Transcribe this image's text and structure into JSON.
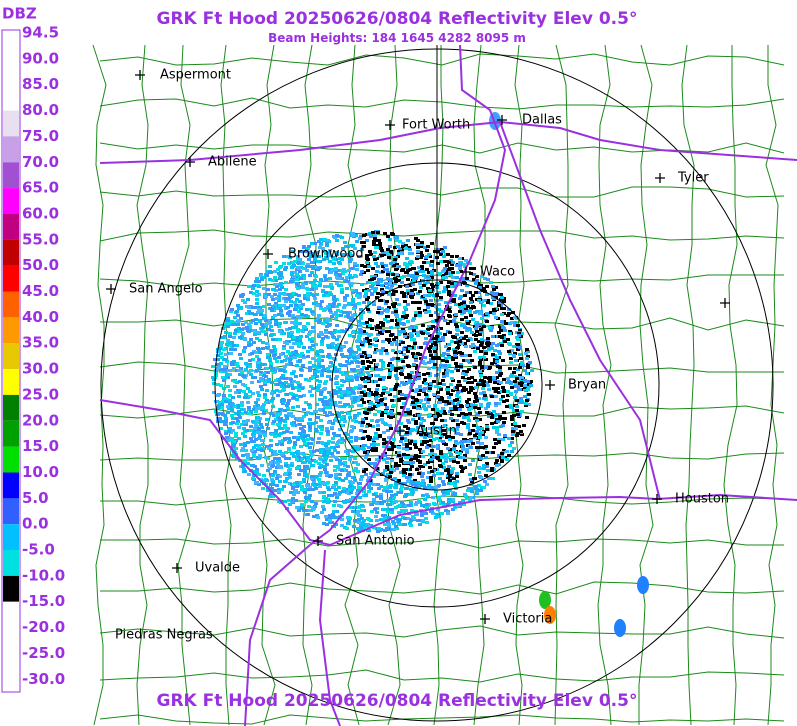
{
  "header": {
    "title": "GRK Ft Hood 20250626/0804 Reflectivity Elev 0.5°",
    "subtitle": "Beam Heights: 184 1645 4282 8095 m"
  },
  "legend": {
    "unit": "DBZ",
    "labels": [
      "94.5",
      "90.0",
      "85.0",
      "80.0",
      "75.0",
      "70.0",
      "65.0",
      "60.0",
      "55.0",
      "50.0",
      "45.0",
      "40.0",
      "35.0",
      "30.0",
      "25.0",
      "20.0",
      "15.0",
      "10.0",
      "5.0",
      "0.0",
      "-5.0",
      "-10.0",
      "-15.0",
      "-20.0",
      "-25.0",
      "-30.0"
    ],
    "colors": [
      "#ffffff",
      "#ffffff",
      "#ffffff",
      "#e8e0f0",
      "#c8a0e8",
      "#a050d0",
      "#ff00ff",
      "#c00080",
      "#c00000",
      "#ff0000",
      "#ff6000",
      "#ff9900",
      "#e8c800",
      "#ffff00",
      "#008000",
      "#00a000",
      "#00e000",
      "#0000ff",
      "#3060ff",
      "#00c0ff",
      "#00e0e0",
      "#000000",
      "#ffffff",
      "#ffffff",
      "#ffffff"
    ]
  },
  "cities": [
    {
      "name": "Aspermont"
    },
    {
      "name": "Fort Worth"
    },
    {
      "name": "Dallas"
    },
    {
      "name": "Abilene"
    },
    {
      "name": "Tyler"
    },
    {
      "name": "Brownwood"
    },
    {
      "name": "Waco"
    },
    {
      "name": "San Angelo"
    },
    {
      "name": "Bryan"
    },
    {
      "name": "Austin"
    },
    {
      "name": "Houston"
    },
    {
      "name": "San Antonio"
    },
    {
      "name": "Uvalde"
    },
    {
      "name": "Victoria"
    },
    {
      "name": "Piedras Negras"
    }
  ],
  "footer": {
    "title": "GRK Ft Hood 20250626/0804 Reflectivity Elev 0.5°"
  }
}
